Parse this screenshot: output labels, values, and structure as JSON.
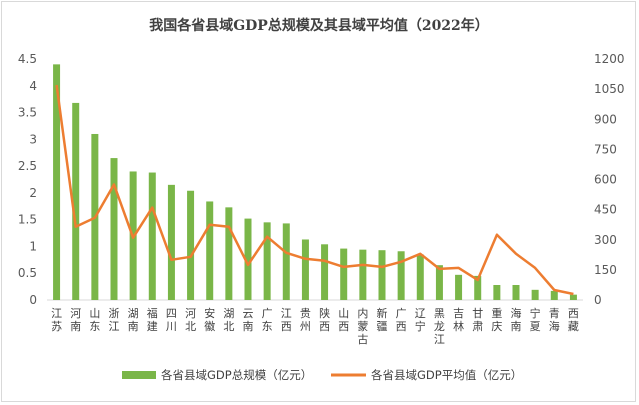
{
  "chart_data": {
    "type": "bar",
    "title": "我国各省县域GDP总规模及其县域平均值（2022年）",
    "categories": [
      "江苏",
      "河南",
      "山东",
      "浙江",
      "湖南",
      "福建",
      "四川",
      "河北",
      "安徽",
      "湖北",
      "云南",
      "广东",
      "江西",
      "贵州",
      "陕西",
      "山西",
      "内蒙古",
      "新疆",
      "广西",
      "辽宁",
      "黑龙江",
      "吉林",
      "甘肃",
      "重庆",
      "海南",
      "宁夏",
      "青海",
      "西藏"
    ],
    "series": [
      {
        "name": "各省县域GDP总规模（亿元）",
        "type": "bar",
        "axis": "left",
        "color": "#7ab648",
        "values": [
          4.4,
          3.68,
          3.1,
          2.65,
          2.4,
          2.38,
          2.15,
          2.04,
          1.84,
          1.73,
          1.52,
          1.45,
          1.43,
          1.13,
          1.04,
          0.96,
          0.94,
          0.93,
          0.91,
          0.85,
          0.65,
          0.47,
          0.45,
          0.28,
          0.28,
          0.19,
          0.17,
          0.1
        ]
      },
      {
        "name": "各省县域GDP平均值（亿元）",
        "type": "line",
        "axis": "right",
        "color": "#ed7d31",
        "values": [
          1070,
          365,
          410,
          575,
          310,
          460,
          200,
          215,
          375,
          365,
          175,
          315,
          235,
          205,
          195,
          165,
          175,
          165,
          190,
          230,
          155,
          160,
          100,
          325,
          230,
          160,
          50,
          30
        ]
      }
    ],
    "y_left": {
      "ticks": [
        "0",
        "0.5",
        "1",
        "1.5",
        "2",
        "2.5",
        "3",
        "3.5",
        "4",
        "4.5"
      ],
      "min": 0,
      "max": 4.5
    },
    "y_right": {
      "ticks": [
        "0",
        "150",
        "300",
        "450",
        "600",
        "750",
        "900",
        "1050",
        "1200"
      ],
      "min": 0,
      "max": 1200
    },
    "grid": false,
    "legend": "bottom"
  }
}
